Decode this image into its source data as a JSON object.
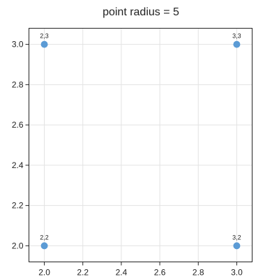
{
  "chart_data": {
    "type": "scatter",
    "title": "point radius = 5",
    "xlabel": "",
    "ylabel": "",
    "xlim": [
      1.92,
      3.08
    ],
    "ylim": [
      1.92,
      3.08
    ],
    "xticks": [
      2.0,
      2.2,
      2.4,
      2.6,
      2.8,
      3.0
    ],
    "yticks": [
      2.0,
      2.2,
      2.4,
      2.6,
      2.8,
      3.0
    ],
    "grid": true,
    "legend": "none",
    "color": "#5b9bd5",
    "point_radius": 5,
    "points": [
      {
        "x": 2,
        "y": 3,
        "label": "2,3"
      },
      {
        "x": 3,
        "y": 3,
        "label": "3,3"
      },
      {
        "x": 2,
        "y": 2,
        "label": "2,2"
      },
      {
        "x": 3,
        "y": 2,
        "label": "3,2"
      }
    ]
  }
}
